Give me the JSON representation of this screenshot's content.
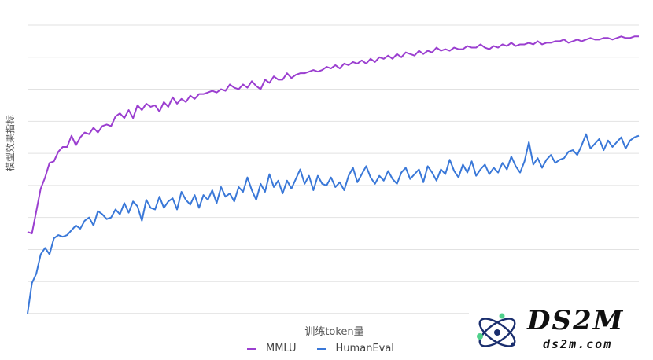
{
  "chart_data": {
    "type": "line",
    "title": "",
    "xlabel": "训练token量",
    "ylabel": "模型效果指标",
    "x_ticks_shown": false,
    "y_ticks_shown": false,
    "grid": "horizontal",
    "legend_position": "bottom-center",
    "ylim": [
      0,
      9
    ],
    "series": [
      {
        "name": "MMLU",
        "color": "#9b3fd0",
        "values": [
          2.55,
          2.5,
          3.2,
          3.9,
          4.25,
          4.7,
          4.75,
          5.05,
          5.2,
          5.2,
          5.55,
          5.25,
          5.5,
          5.65,
          5.6,
          5.8,
          5.65,
          5.85,
          5.9,
          5.85,
          6.15,
          6.25,
          6.1,
          6.35,
          6.1,
          6.5,
          6.35,
          6.55,
          6.45,
          6.5,
          6.3,
          6.6,
          6.45,
          6.75,
          6.55,
          6.7,
          6.6,
          6.8,
          6.7,
          6.85,
          6.85,
          6.9,
          6.95,
          6.9,
          7.0,
          6.95,
          7.15,
          7.05,
          7.0,
          7.15,
          7.05,
          7.25,
          7.1,
          7.0,
          7.3,
          7.2,
          7.4,
          7.3,
          7.3,
          7.5,
          7.35,
          7.45,
          7.5,
          7.5,
          7.55,
          7.6,
          7.55,
          7.6,
          7.7,
          7.65,
          7.75,
          7.65,
          7.8,
          7.75,
          7.85,
          7.8,
          7.9,
          7.8,
          7.95,
          7.85,
          8.0,
          7.95,
          8.05,
          7.95,
          8.1,
          8.0,
          8.15,
          8.1,
          8.05,
          8.2,
          8.1,
          8.2,
          8.15,
          8.3,
          8.2,
          8.25,
          8.2,
          8.3,
          8.25,
          8.25,
          8.35,
          8.3,
          8.3,
          8.4,
          8.3,
          8.25,
          8.35,
          8.3,
          8.4,
          8.35,
          8.45,
          8.35,
          8.4,
          8.4,
          8.45,
          8.4,
          8.5,
          8.4,
          8.45,
          8.45,
          8.5,
          8.5,
          8.55,
          8.45,
          8.5,
          8.55,
          8.5,
          8.55,
          8.6,
          8.55,
          8.55,
          8.6,
          8.6,
          8.55,
          8.6,
          8.65,
          8.6,
          8.6,
          8.65,
          8.65
        ]
      },
      {
        "name": "HumanEval",
        "color": "#3a78d8",
        "values": [
          0.0,
          0.95,
          1.25,
          1.85,
          2.05,
          1.85,
          2.35,
          2.45,
          2.4,
          2.45,
          2.6,
          2.75,
          2.65,
          2.9,
          3.0,
          2.75,
          3.2,
          3.1,
          2.95,
          3.0,
          3.25,
          3.1,
          3.45,
          3.15,
          3.5,
          3.35,
          2.9,
          3.55,
          3.3,
          3.25,
          3.65,
          3.3,
          3.5,
          3.6,
          3.25,
          3.8,
          3.55,
          3.4,
          3.7,
          3.3,
          3.7,
          3.55,
          3.85,
          3.45,
          3.95,
          3.65,
          3.75,
          3.5,
          3.95,
          3.8,
          4.25,
          3.85,
          3.55,
          4.05,
          3.8,
          4.35,
          3.95,
          4.15,
          3.75,
          4.15,
          3.9,
          4.2,
          4.5,
          4.05,
          4.3,
          3.85,
          4.3,
          4.05,
          4.0,
          4.25,
          3.95,
          4.1,
          3.85,
          4.3,
          4.55,
          4.1,
          4.35,
          4.6,
          4.25,
          4.05,
          4.3,
          4.15,
          4.45,
          4.2,
          4.05,
          4.4,
          4.55,
          4.2,
          4.35,
          4.5,
          4.1,
          4.6,
          4.4,
          4.15,
          4.5,
          4.35,
          4.8,
          4.45,
          4.25,
          4.65,
          4.4,
          4.75,
          4.3,
          4.5,
          4.65,
          4.35,
          4.55,
          4.4,
          4.7,
          4.5,
          4.9,
          4.6,
          4.4,
          4.75,
          5.35,
          4.65,
          4.85,
          4.55,
          4.8,
          4.95,
          4.7,
          4.8,
          4.85,
          5.05,
          5.1,
          4.95,
          5.25,
          5.6,
          5.15,
          5.3,
          5.45,
          5.1,
          5.4,
          5.2,
          5.35,
          5.5,
          5.15,
          5.4,
          5.5,
          5.55
        ]
      }
    ]
  },
  "watermark": {
    "title": "DS2M",
    "url": "ds2m.com"
  }
}
